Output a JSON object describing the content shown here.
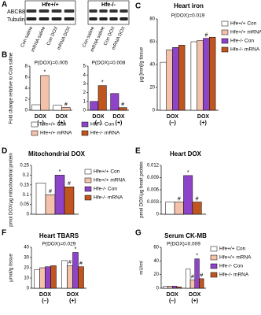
{
  "blot": {
    "panel": "A",
    "groups": [
      "Hfe+/+",
      "Hfe-/-"
    ],
    "rows": [
      "ABCB8",
      "Tubulin"
    ],
    "lanes": [
      "Con saline",
      "mRNA saline",
      "Con DOX",
      "mRNA DOX"
    ],
    "lane_colors": [
      "#000000",
      "#000000",
      "#d62020",
      "#d62020"
    ]
  },
  "chart_data": [
    {
      "type": "bar",
      "panel": "B",
      "ylabel": "Fold change relative to Con saline",
      "annotation": "P(DOX)=0.005",
      "ylim": [
        0,
        8
      ],
      "yticks": [
        0,
        2,
        4,
        6,
        8
      ],
      "categories": [
        "DOX",
        "DOX"
      ],
      "category_sub": [
        "(–)",
        "(+)"
      ],
      "category_colors": [
        "#000000",
        "#d62020"
      ],
      "legend": true,
      "series": [
        {
          "name": "Hfe+/+ Con",
          "color": "#ffffff",
          "values": [
            1,
            0.9
          ],
          "markers": [
            null,
            null
          ]
        },
        {
          "name": "Hfe+/+ mRNA",
          "color": "#f4c1aa",
          "values": [
            6.3,
            0.5
          ],
          "markers": [
            "*",
            "#"
          ]
        }
      ]
    },
    {
      "type": "bar",
      "annotation": "P(DOX)=0.008",
      "ylim": [
        0,
        5
      ],
      "yticks": [
        0,
        1,
        2,
        3,
        4,
        5
      ],
      "categories": [
        "DOX",
        "DOX"
      ],
      "category_sub": [
        "(–)",
        "(+)"
      ],
      "category_colors": [
        "#000000",
        "#d62020"
      ],
      "legend": true,
      "series": [
        {
          "name": "Hfe-/- Con",
          "color": "#8e44c8",
          "values": [
            1,
            1.9
          ],
          "markers": [
            null,
            null
          ]
        },
        {
          "name": "Hfe-/- mRNA",
          "color": "#c0561f",
          "values": [
            2.8,
            0.3
          ],
          "markers": [
            "*",
            "#"
          ]
        }
      ]
    },
    {
      "type": "bar",
      "panel": "C",
      "title": "Heart iron",
      "ylabel": "μg [iron]/g tissue",
      "annotation": "P(DOX)=0.019",
      "ylim": [
        0,
        80
      ],
      "yticks": [
        0,
        20,
        40,
        60,
        80
      ],
      "categories": [
        "DOX",
        "DOX"
      ],
      "category_sub": [
        "(–)",
        "(+)"
      ],
      "category_colors": [
        "#000000",
        "#d62020"
      ],
      "legend": true,
      "series": [
        {
          "name": "Hfe+/+ Con",
          "color": "#ffffff",
          "values": [
            42,
            60
          ],
          "markers": [
            null,
            null
          ]
        },
        {
          "name": "Hfe+/+ mRNA",
          "color": "#f4c1aa",
          "values": [
            53,
            61
          ],
          "markers": [
            null,
            null
          ]
        },
        {
          "name": "Hfe-/- Con",
          "color": "#8e44c8",
          "values": [
            55,
            63
          ],
          "markers": [
            null,
            "#"
          ]
        },
        {
          "name": "Hfe-/- mRNA",
          "color": "#c0561f",
          "values": [
            57,
            64
          ],
          "markers": [
            null,
            null
          ]
        }
      ]
    },
    {
      "type": "bar",
      "panel": "D",
      "title": "Mitochondrial DOX",
      "ylabel": "pmol DOX/μg mitochondrial protein",
      "ylim": [
        0,
        0.25
      ],
      "yticks": [
        0,
        0.05,
        0.1,
        0.15,
        0.2,
        0.25
      ],
      "legend": true,
      "series": [
        {
          "name": "Hfe+/+ Con",
          "color": "#ffffff",
          "values": [
            0.16
          ],
          "markers": [
            null
          ]
        },
        {
          "name": "Hfe+/+ mRNA",
          "color": "#f4c1aa",
          "values": [
            0.1
          ],
          "markers": [
            "#"
          ]
        },
        {
          "name": "Hfe-/- Con",
          "color": "#8e44c8",
          "values": [
            0.2
          ],
          "markers": [
            "*"
          ]
        },
        {
          "name": "Hfe-/- mRNA",
          "color": "#c0561f",
          "values": [
            0.14
          ],
          "markers": [
            "#"
          ]
        }
      ]
    },
    {
      "type": "bar",
      "panel": "E",
      "title": "Heart DOX",
      "ylabel": "pmol DOX/μg heart protein",
      "ylim": [
        0,
        0.012
      ],
      "yticks": [
        0,
        0.003,
        0.006,
        0.009,
        0.012
      ],
      "legend": false,
      "series": [
        {
          "name": "Hfe+/+ Con",
          "color": "#ffffff",
          "values": [
            0.003
          ],
          "markers": [
            null
          ]
        },
        {
          "name": "Hfe+/+ mRNA",
          "color": "#f4c1aa",
          "values": [
            0.003
          ],
          "markers": [
            "#"
          ]
        },
        {
          "name": "Hfe-/- Con",
          "color": "#8e44c8",
          "values": [
            0.0095
          ],
          "markers": [
            "*"
          ]
        },
        {
          "name": "Hfe-/- mRNA",
          "color": "#c0561f",
          "values": [
            0.003
          ],
          "markers": [
            "#"
          ]
        }
      ]
    },
    {
      "type": "bar",
      "panel": "F",
      "title": "Heart TBARS",
      "ylabel": "μmol/g tissue",
      "annotation": "P(DOX)=0.029",
      "ylim": [
        0,
        40
      ],
      "yticks": [
        0,
        10,
        20,
        30,
        40
      ],
      "categories": [
        "DOX",
        "DOX"
      ],
      "category_sub": [
        "(–)",
        "(+)"
      ],
      "category_colors": [
        "#000000",
        "#d62020"
      ],
      "legend": false,
      "series": [
        {
          "name": "Hfe+/+ Con",
          "color": "#ffffff",
          "values": [
            18,
            27
          ],
          "markers": [
            null,
            null
          ]
        },
        {
          "name": "Hfe+/+ mRNA",
          "color": "#f4c1aa",
          "values": [
            20,
            22
          ],
          "markers": [
            null,
            "#"
          ]
        },
        {
          "name": "Hfe-/- Con",
          "color": "#8e44c8",
          "values": [
            21,
            35
          ],
          "markers": [
            null,
            "*"
          ]
        },
        {
          "name": "Hfe-/- mRNA",
          "color": "#c0561f",
          "values": [
            22,
            21
          ],
          "markers": [
            null,
            "#"
          ]
        }
      ]
    },
    {
      "type": "bar",
      "panel": "G",
      "title": "Serum CK-MB",
      "ylabel": "mU/ml",
      "annotation": "P(DOX)=0.009",
      "ylim": [
        0,
        60
      ],
      "yticks": [
        0,
        20,
        40,
        60
      ],
      "categories": [
        "DOX",
        "DOX"
      ],
      "category_sub": [
        "(–)",
        "(+)"
      ],
      "category_colors": [
        "#000000",
        "#d62020"
      ],
      "legend": true,
      "series": [
        {
          "name": "Hfe+/+ Con",
          "color": "#ffffff",
          "values": [
            3,
            28
          ],
          "markers": [
            null,
            null
          ]
        },
        {
          "name": "Hfe+/+ mRNA",
          "color": "#f4c1aa",
          "values": [
            3,
            12
          ],
          "markers": [
            null,
            "#"
          ]
        },
        {
          "name": "Hfe-/- Con",
          "color": "#8e44c8",
          "values": [
            3,
            43
          ],
          "markers": [
            null,
            "*"
          ]
        },
        {
          "name": "Hfe-/- mRNA",
          "color": "#c0561f",
          "values": [
            2,
            14
          ],
          "markers": [
            null,
            "#"
          ]
        }
      ]
    }
  ]
}
